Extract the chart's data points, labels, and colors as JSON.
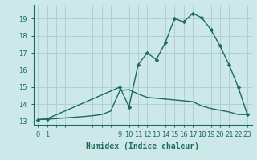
{
  "xlabel": "Humidex (Indice chaleur)",
  "background_color": "#cce8e8",
  "grid_color": "#b0d0d0",
  "line_color": "#1a6b5a",
  "curve_x": [
    0,
    1,
    9,
    10,
    11,
    12,
    13,
    14,
    15,
    16,
    17,
    18,
    19,
    20,
    21,
    22,
    23
  ],
  "curve_y": [
    13.1,
    13.15,
    15.0,
    13.85,
    16.3,
    17.0,
    16.6,
    17.6,
    19.0,
    18.8,
    19.3,
    19.05,
    18.35,
    17.4,
    16.3,
    15.0,
    13.4
  ],
  "smooth_x": [
    0,
    1,
    2,
    3,
    4,
    5,
    6,
    7,
    8,
    9,
    10,
    11,
    12,
    13,
    14,
    15,
    16,
    17,
    18,
    19,
    20,
    21,
    22,
    23
  ],
  "smooth_y": [
    13.1,
    13.13,
    13.16,
    13.2,
    13.24,
    13.28,
    13.33,
    13.4,
    13.6,
    14.8,
    14.85,
    14.6,
    14.4,
    14.35,
    14.3,
    14.25,
    14.2,
    14.15,
    13.9,
    13.75,
    13.65,
    13.55,
    13.4,
    13.4
  ],
  "ylim": [
    12.8,
    19.8
  ],
  "yticks": [
    13,
    14,
    15,
    16,
    17,
    18,
    19
  ],
  "xtick_positions": [
    0,
    1,
    2,
    3,
    4,
    5,
    6,
    7,
    8,
    9,
    10,
    11,
    12,
    13,
    14,
    15,
    16,
    17,
    18,
    19,
    20,
    21,
    22,
    23
  ],
  "xtick_labels": [
    "0",
    "1",
    "",
    "",
    "",
    "",
    "",
    "",
    "",
    "9",
    "10",
    "11",
    "12",
    "13",
    "14",
    "15",
    "16",
    "17",
    "18",
    "19",
    "20",
    "21",
    "22",
    "23"
  ],
  "marker_size": 2.5,
  "line_width": 1.0,
  "tick_fontsize": 6,
  "xlabel_fontsize": 7
}
